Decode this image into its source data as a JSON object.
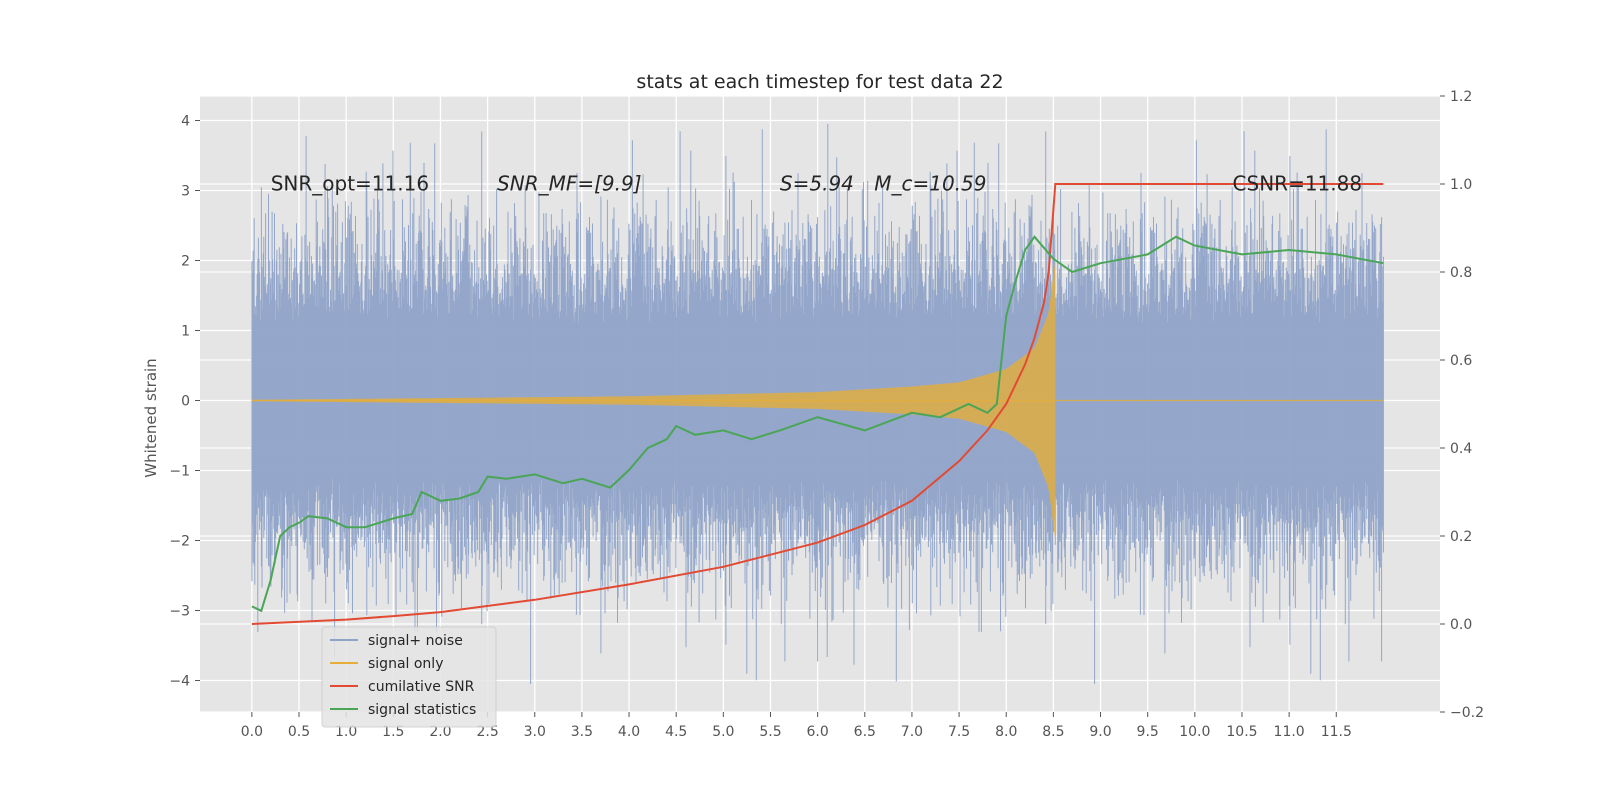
{
  "chart_data": {
    "type": "line",
    "title": "stats at each timestep for test data 22",
    "ylabel": "Whitened strain",
    "xlabel": "",
    "xlim": [
      -0.55,
      12.6
    ],
    "ylim": [
      -4.45,
      4.35
    ],
    "ylim_right": [
      -0.2,
      1.2
    ],
    "x_ticks": [
      0.0,
      0.5,
      1.0,
      1.5,
      2.0,
      2.5,
      3.0,
      3.5,
      4.0,
      4.5,
      5.0,
      5.5,
      6.0,
      6.5,
      7.0,
      7.5,
      8.0,
      8.5,
      9.0,
      9.5,
      10.0,
      10.5,
      11.0,
      11.5
    ],
    "x_tick_labels": [
      "0.0",
      "0.5",
      "1.0",
      "1.5",
      "2.0",
      "2.5",
      "3.0",
      "3.5",
      "4.0",
      "4.5",
      "5.0",
      "5.5",
      "6.0",
      "6.5",
      "7.0",
      "7.5",
      "8.0",
      "8.5",
      "9.0",
      "9.5",
      "10.0",
      "10.5",
      "11.0",
      "11.5"
    ],
    "y_ticks": [
      -4,
      -3,
      -2,
      -1,
      0,
      1,
      2,
      3,
      4
    ],
    "y_tick_labels": [
      "−4",
      "−3",
      "−2",
      "−1",
      "0",
      "1",
      "2",
      "3",
      "4"
    ],
    "y_ticks_right": [
      -0.2,
      0.0,
      0.2,
      0.4,
      0.6,
      0.8,
      1.0,
      1.2
    ],
    "y_tick_labels_right": [
      "−0.2",
      "0.0",
      "0.2",
      "0.4",
      "0.6",
      "0.8",
      "1.0",
      "1.2"
    ],
    "grid": true,
    "legend_position": "lower-left",
    "annotations": [
      {
        "text": "SNR_opt=11.16",
        "x": 0.2,
        "y": 3.1,
        "italic": false
      },
      {
        "text": "SNR_MF=[9.9]",
        "x": 2.6,
        "y": 3.1,
        "italic": true
      },
      {
        "text": "S=5.94",
        "x": 5.6,
        "y": 3.1,
        "italic": true
      },
      {
        "text": "M_c=10.59",
        "x": 6.6,
        "y": 3.1,
        "italic": true
      },
      {
        "text": "CSNR=11.88",
        "x": 10.4,
        "y": 3.1,
        "italic": false
      }
    ],
    "series": [
      {
        "name": "signal+ noise",
        "color": "#8fa3c8",
        "kind": "noise band",
        "x_range": [
          0.0,
          12.0
        ],
        "typical_amplitude": 2.2,
        "max_value": 3.95,
        "min_value": -4.05
      },
      {
        "name": "signal only",
        "color": "#e5ae38",
        "kind": "chirp",
        "x_range": [
          0.0,
          8.52
        ],
        "amplitude_envelope": [
          [
            0.0,
            0.01
          ],
          [
            4.0,
            0.06
          ],
          [
            6.0,
            0.12
          ],
          [
            7.0,
            0.2
          ],
          [
            7.5,
            0.26
          ],
          [
            8.0,
            0.45
          ],
          [
            8.3,
            0.75
          ],
          [
            8.45,
            1.25
          ],
          [
            8.5,
            1.8
          ],
          [
            8.52,
            2.0
          ]
        ]
      },
      {
        "name": "cumilative SNR",
        "color": "#e24a33",
        "axis": "right",
        "x": [
          0.0,
          1.0,
          1.5,
          2.0,
          3.0,
          4.0,
          5.0,
          6.0,
          6.5,
          7.0,
          7.5,
          7.8,
          8.0,
          8.2,
          8.3,
          8.4,
          8.45,
          8.52,
          12.0
        ],
        "y": [
          0.0,
          0.01,
          0.018,
          0.027,
          0.055,
          0.09,
          0.13,
          0.185,
          0.225,
          0.28,
          0.37,
          0.44,
          0.5,
          0.59,
          0.65,
          0.73,
          0.8,
          1.0,
          1.0
        ]
      },
      {
        "name": "signal statistics",
        "color": "#348abd",
        "line_color": "#4aa557",
        "axis": "right",
        "x": [
          0.0,
          0.1,
          0.2,
          0.3,
          0.4,
          0.5,
          0.6,
          0.8,
          1.0,
          1.2,
          1.5,
          1.7,
          1.8,
          2.0,
          2.2,
          2.4,
          2.5,
          2.7,
          3.0,
          3.3,
          3.5,
          3.8,
          4.0,
          4.2,
          4.4,
          4.5,
          4.7,
          5.0,
          5.3,
          5.6,
          6.0,
          6.5,
          7.0,
          7.3,
          7.6,
          7.8,
          7.9,
          8.0,
          8.1,
          8.2,
          8.3,
          8.5,
          8.7,
          9.0,
          9.5,
          9.8,
          10.0,
          10.5,
          11.0,
          11.5,
          12.0
        ],
        "y": [
          0.04,
          0.03,
          0.1,
          0.2,
          0.22,
          0.23,
          0.245,
          0.24,
          0.22,
          0.22,
          0.24,
          0.25,
          0.3,
          0.28,
          0.285,
          0.3,
          0.335,
          0.33,
          0.34,
          0.32,
          0.33,
          0.31,
          0.35,
          0.4,
          0.42,
          0.45,
          0.43,
          0.44,
          0.42,
          0.44,
          0.47,
          0.44,
          0.48,
          0.47,
          0.5,
          0.48,
          0.5,
          0.7,
          0.78,
          0.85,
          0.88,
          0.83,
          0.8,
          0.82,
          0.84,
          0.88,
          0.86,
          0.84,
          0.85,
          0.84,
          0.82
        ]
      }
    ]
  }
}
